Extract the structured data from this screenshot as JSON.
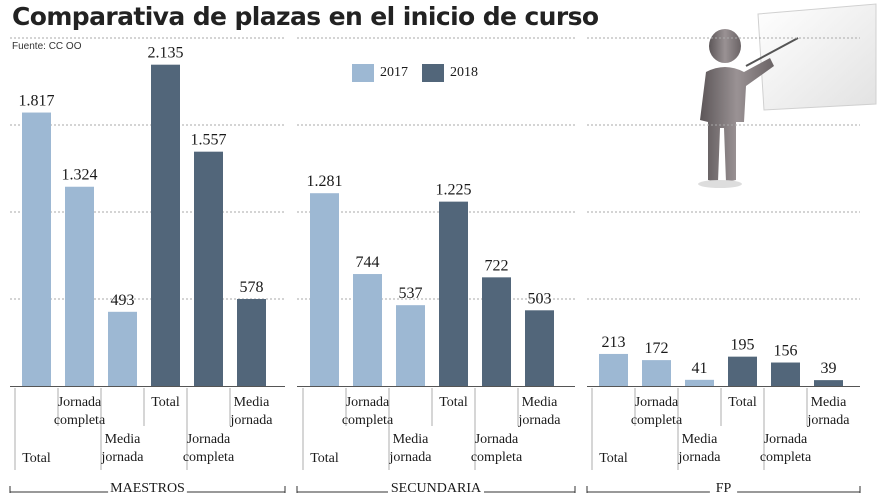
{
  "title": "Comparativa de plazas en el inicio de curso",
  "source": "Fuente: CC OO",
  "colors": {
    "2017": "#9db8d3",
    "2018": "#52667a",
    "grid": "#aaaaaa",
    "axis": "#555555"
  },
  "chart_data": {
    "type": "bar",
    "legend": [
      "2017",
      "2018"
    ],
    "legend_position": "top-center",
    "grid": true,
    "ylim": [
      0,
      2400
    ],
    "panels": [
      {
        "name": "MAESTROS",
        "categories": [
          "Total",
          "Jornada completa",
          "Media jornada"
        ],
        "series": [
          {
            "name": "2017",
            "values": [
              1817,
              1324,
              493
            ],
            "labels": [
              "1.817",
              "1.324",
              "493"
            ]
          },
          {
            "name": "2018",
            "values": [
              2135,
              1557,
              578
            ],
            "labels": [
              "2.135",
              "1.557",
              "578"
            ]
          }
        ]
      },
      {
        "name": "SECUNDARIA",
        "categories": [
          "Total",
          "Jornada completa",
          "Media jornada"
        ],
        "series": [
          {
            "name": "2017",
            "values": [
              1281,
              744,
              537
            ],
            "labels": [
              "1.281",
              "744",
              "537"
            ]
          },
          {
            "name": "2018",
            "values": [
              1225,
              722,
              503
            ],
            "labels": [
              "1.225",
              "722",
              "503"
            ]
          }
        ]
      },
      {
        "name": "FP",
        "categories": [
          "Total",
          "Jornada completa",
          "Media jornada"
        ],
        "series": [
          {
            "name": "2017",
            "values": [
              213,
              172,
              41
            ],
            "labels": [
              "213",
              "172",
              "41"
            ]
          },
          {
            "name": "2018",
            "values": [
              195,
              156,
              39
            ],
            "labels": [
              "195",
              "156",
              "39"
            ]
          }
        ]
      }
    ]
  }
}
